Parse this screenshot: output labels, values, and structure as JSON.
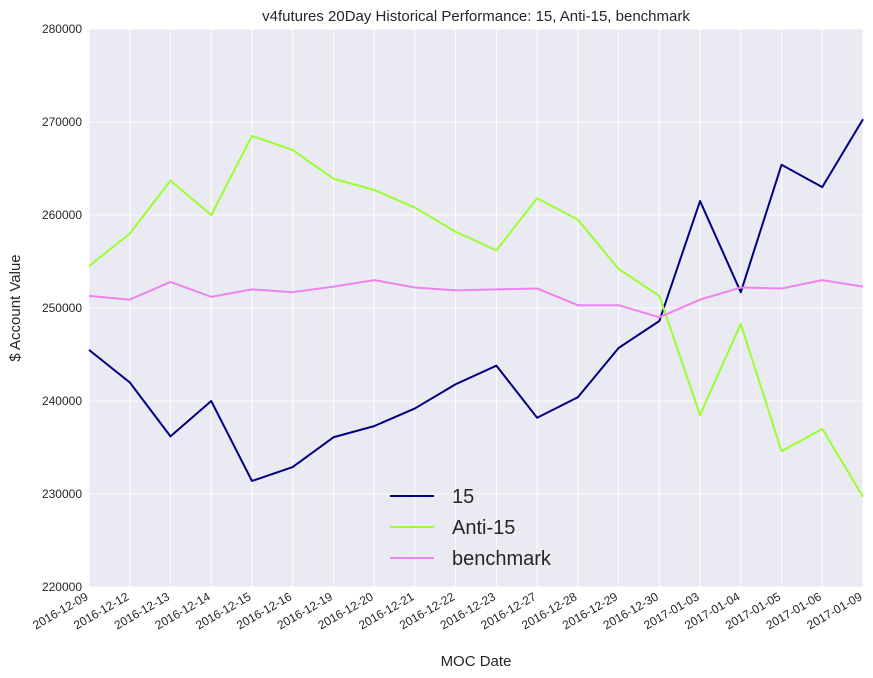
{
  "chart_data": {
    "type": "line",
    "title": "v4futures 20Day Historical Performance: 15, Anti-15, benchmark",
    "xlabel": "MOC Date",
    "ylabel": "$ Account Value",
    "ylim": [
      220000,
      280000
    ],
    "yticks": [
      220000,
      230000,
      240000,
      250000,
      260000,
      270000,
      280000
    ],
    "grid": true,
    "legend_position": "lower-center",
    "x": [
      "2016-12-09",
      "2016-12-12",
      "2016-12-13",
      "2016-12-14",
      "2016-12-15",
      "2016-12-16",
      "2016-12-19",
      "2016-12-20",
      "2016-12-21",
      "2016-12-22",
      "2016-12-23",
      "2016-12-27",
      "2016-12-28",
      "2016-12-29",
      "2016-12-30",
      "2017-01-03",
      "2017-01-04",
      "2017-01-05",
      "2017-01-06",
      "2017-01-09"
    ],
    "series": [
      {
        "name": "15",
        "color": "#000080",
        "values": [
          245500,
          242000,
          236200,
          240000,
          231400,
          232900,
          236100,
          237300,
          239200,
          241800,
          243800,
          238200,
          240400,
          245700,
          248600,
          261500,
          251700,
          265400,
          263000,
          270300
        ]
      },
      {
        "name": "Anti-15",
        "color": "#9AFF30",
        "values": [
          254500,
          258000,
          263700,
          260000,
          268500,
          267000,
          263900,
          262700,
          260800,
          258200,
          256200,
          261800,
          259500,
          254200,
          251300,
          238500,
          248300,
          234600,
          237000,
          229700
        ]
      },
      {
        "name": "benchmark",
        "color": "#EE82EE",
        "values": [
          251300,
          250900,
          252800,
          251200,
          252000,
          251700,
          252300,
          253000,
          252200,
          251900,
          252000,
          252100,
          250300,
          250300,
          249000,
          250900,
          252200,
          252100,
          253000,
          252300
        ]
      }
    ]
  }
}
